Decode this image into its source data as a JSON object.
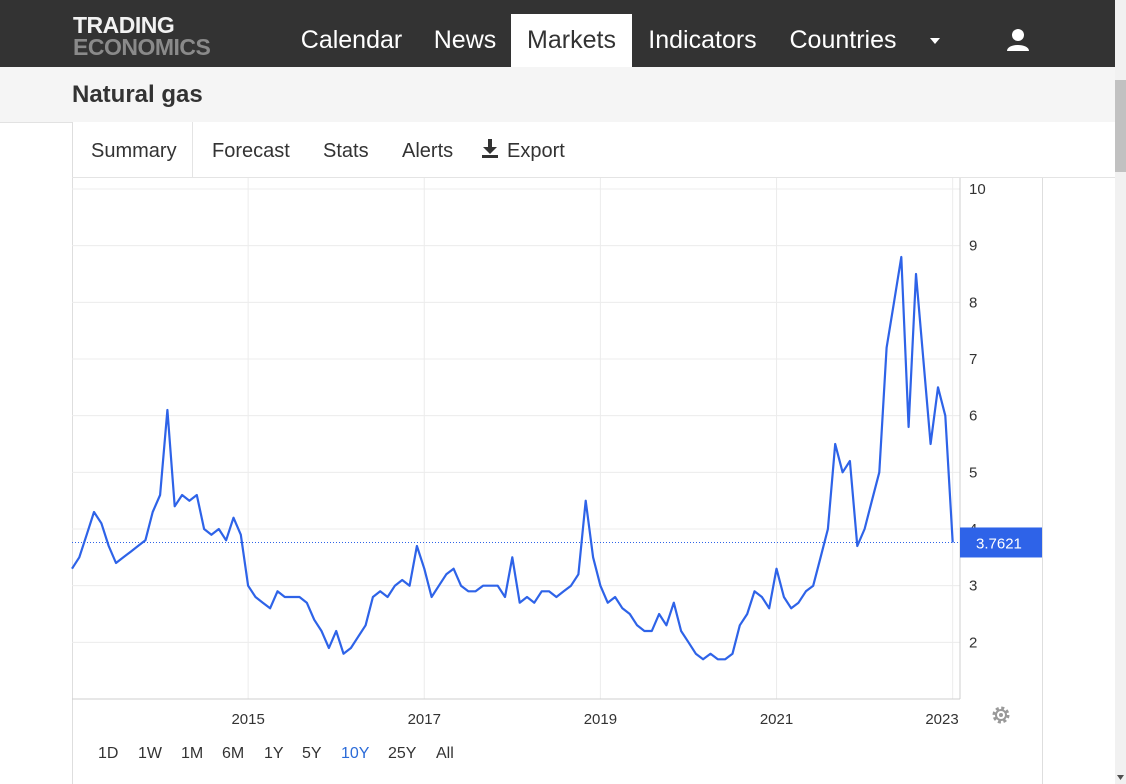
{
  "header": {
    "logo_line1": "TRADING",
    "logo_line2": "ECONOMICS",
    "nav": [
      {
        "label": "Calendar"
      },
      {
        "label": "News"
      },
      {
        "label": "Markets",
        "active": true
      },
      {
        "label": "Indicators"
      },
      {
        "label": "Countries"
      }
    ],
    "more_icon": "caret-down-icon",
    "user_icon": "user-icon"
  },
  "page": {
    "title": "Natural gas"
  },
  "tabs": [
    "Summary",
    "Forecast",
    "Stats",
    "Alerts",
    "Export"
  ],
  "export_icon": "download-icon",
  "ranges": [
    "1D",
    "1W",
    "1M",
    "6M",
    "1Y",
    "5Y",
    "10Y",
    "25Y",
    "All"
  ],
  "active_range": "10Y",
  "settings_icon": "gear-icon",
  "colors": {
    "line": "#2e63e8",
    "last_label_bg": "#2e63e8",
    "active_range": "#2b6bd8",
    "nav_bg": "#333333"
  },
  "chart_data": {
    "type": "line",
    "x_ticks": [
      "2015",
      "2017",
      "2019",
      "2021",
      "2023"
    ],
    "y_ticks": [
      2,
      3,
      4,
      5,
      6,
      7,
      8,
      9,
      10
    ],
    "ylim": [
      1,
      10
    ],
    "xlim": [
      "2013-01",
      "2023-02"
    ],
    "grid": true,
    "last_value": "3.7621",
    "series": [
      {
        "x": [
          "2013-01",
          "2013-02",
          "2013-03",
          "2013-04",
          "2013-05",
          "2013-06",
          "2013-07",
          "2013-08",
          "2013-09",
          "2013-10",
          "2013-11",
          "2013-12",
          "2014-01",
          "2014-02",
          "2014-03",
          "2014-04",
          "2014-05",
          "2014-06",
          "2014-07",
          "2014-08",
          "2014-09",
          "2014-10",
          "2014-11",
          "2014-12",
          "2015-01",
          "2015-02",
          "2015-03",
          "2015-04",
          "2015-05",
          "2015-06",
          "2015-07",
          "2015-08",
          "2015-09",
          "2015-10",
          "2015-11",
          "2015-12",
          "2016-01",
          "2016-02",
          "2016-03",
          "2016-04",
          "2016-05",
          "2016-06",
          "2016-07",
          "2016-08",
          "2016-09",
          "2016-10",
          "2016-11",
          "2016-12",
          "2017-01",
          "2017-02",
          "2017-03",
          "2017-04",
          "2017-05",
          "2017-06",
          "2017-07",
          "2017-08",
          "2017-09",
          "2017-10",
          "2017-11",
          "2017-12",
          "2018-01",
          "2018-02",
          "2018-03",
          "2018-04",
          "2018-05",
          "2018-06",
          "2018-07",
          "2018-08",
          "2018-09",
          "2018-10",
          "2018-11",
          "2018-12",
          "2019-01",
          "2019-02",
          "2019-03",
          "2019-04",
          "2019-05",
          "2019-06",
          "2019-07",
          "2019-08",
          "2019-09",
          "2019-10",
          "2019-11",
          "2019-12",
          "2020-01",
          "2020-02",
          "2020-03",
          "2020-04",
          "2020-05",
          "2020-06",
          "2020-07",
          "2020-08",
          "2020-09",
          "2020-10",
          "2020-11",
          "2020-12",
          "2021-01",
          "2021-02",
          "2021-03",
          "2021-04",
          "2021-05",
          "2021-06",
          "2021-07",
          "2021-08",
          "2021-09",
          "2021-10",
          "2021-11",
          "2021-12",
          "2022-01",
          "2022-02",
          "2022-03",
          "2022-04",
          "2022-05",
          "2022-06",
          "2022-07",
          "2022-08",
          "2022-09",
          "2022-10",
          "2022-11",
          "2022-12",
          "2023-01"
        ],
        "values": [
          3.3,
          3.5,
          3.9,
          4.3,
          4.1,
          3.7,
          3.4,
          3.5,
          3.6,
          3.7,
          3.8,
          4.3,
          4.6,
          6.1,
          4.4,
          4.6,
          4.5,
          4.6,
          4.0,
          3.9,
          4.0,
          3.8,
          4.2,
          3.9,
          3.0,
          2.8,
          2.7,
          2.6,
          2.9,
          2.8,
          2.8,
          2.8,
          2.7,
          2.4,
          2.2,
          1.9,
          2.2,
          1.8,
          1.9,
          2.1,
          2.3,
          2.8,
          2.9,
          2.8,
          3.0,
          3.1,
          3.0,
          3.7,
          3.3,
          2.8,
          3.0,
          3.2,
          3.3,
          3.0,
          2.9,
          2.9,
          3.0,
          3.0,
          3.0,
          2.8,
          3.5,
          2.7,
          2.8,
          2.7,
          2.9,
          2.9,
          2.8,
          2.9,
          3.0,
          3.2,
          4.5,
          3.5,
          3.0,
          2.7,
          2.8,
          2.6,
          2.5,
          2.3,
          2.2,
          2.2,
          2.5,
          2.3,
          2.7,
          2.2,
          2.0,
          1.8,
          1.7,
          1.8,
          1.7,
          1.7,
          1.8,
          2.3,
          2.5,
          2.9,
          2.8,
          2.6,
          3.3,
          2.8,
          2.6,
          2.7,
          2.9,
          3.0,
          3.5,
          4.0,
          5.5,
          5.0,
          5.2,
          3.7,
          4.0,
          4.5,
          5.0,
          7.2,
          8.0,
          8.8,
          5.8,
          8.5,
          7.0,
          5.5,
          6.5,
          6.0,
          3.7621
        ]
      }
    ]
  }
}
